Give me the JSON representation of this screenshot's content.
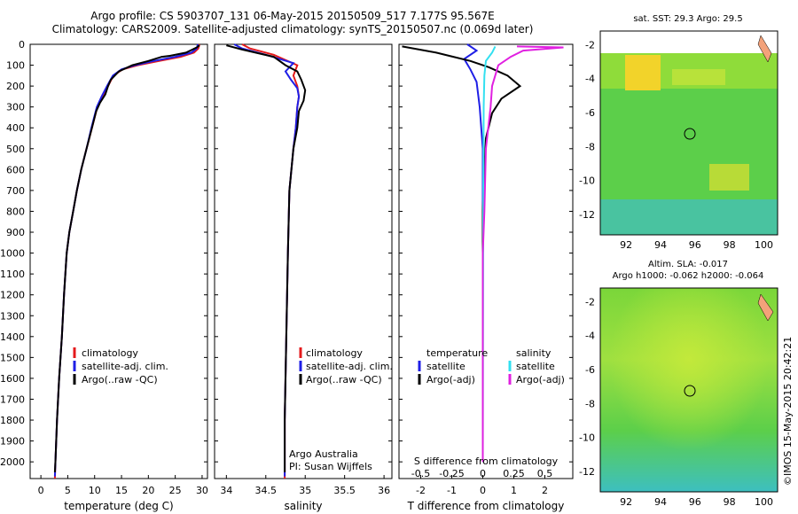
{
  "header": {
    "line1": "Argo profile: CS 5903707_131 06-May-2015 20150509_517 7.177S 95.567E",
    "line2": "Climatology: CARS2009. Satellite-adjusted climatology: synTS_20150507.nc (0.069d later)"
  },
  "depth_ticks": [
    "0",
    "100",
    "200",
    "300",
    "400",
    "500",
    "600",
    "700",
    "800",
    "900",
    "1000",
    "1100",
    "1200",
    "1300",
    "1400",
    "1500",
    "1600",
    "1700",
    "1800",
    "1900",
    "2000"
  ],
  "colors": {
    "climatology": "#e41a1c",
    "satellite": "#1f1fe6",
    "argo": "#000000",
    "salinity_sat": "#33e0f0",
    "salinity_argo": "#e020e0"
  },
  "panels": {
    "temperature": {
      "xlabel": "temperature (deg C)",
      "ticks": [
        "0",
        "5",
        "10",
        "15",
        "20",
        "25",
        "30"
      ],
      "legend": [
        "climatology",
        "satellite-adj. clim.",
        "Argo(..raw -QC)"
      ]
    },
    "salinity": {
      "xlabel": "salinity",
      "ticks": [
        "34",
        "34.5",
        "35",
        "35.5",
        "36"
      ],
      "legend": [
        "climatology",
        "satellite-adj. clim.",
        "Argo(..raw -QC)"
      ],
      "note1": "Argo Australia",
      "note2": "PI: Susan Wijffels"
    },
    "difference": {
      "xlabel": "T difference from climatology",
      "top_label": "S difference from climatology",
      "t_ticks": [
        "-2",
        "-1",
        "0",
        "1",
        "2"
      ],
      "s_ticks": [
        "-0.5",
        "-0.25",
        "0",
        "0.25",
        "0.5"
      ],
      "legend_temp_title": "temperature",
      "legend_sal_title": "salinity",
      "legend_temp": [
        "satellite",
        "Argo(-adj)"
      ],
      "legend_sal": [
        "satellite",
        "Argo(-adj)"
      ]
    }
  },
  "maps": {
    "sst": {
      "title": "sat. SST: 29.3 Argo: 29.5",
      "yticks": [
        "-2",
        "-4",
        "-6",
        "-8",
        "-10",
        "-12"
      ],
      "xticks": [
        "92",
        "94",
        "96",
        "98",
        "100"
      ]
    },
    "sla": {
      "title1": "Altim. SLA: -0.017",
      "title2": "Argo h1000: -0.062 h2000: -0.064",
      "yticks": [
        "-2",
        "-4",
        "-6",
        "-8",
        "-10",
        "-12"
      ],
      "xticks": [
        "92",
        "94",
        "96",
        "98",
        "100"
      ]
    }
  },
  "footer_vertical": "©IMOS 15-May-2015 20:42:21",
  "chart_data": [
    {
      "type": "line",
      "xlabel": "temperature (deg C)",
      "ylabel": "",
      "xlim": [
        -2,
        31
      ],
      "ylim": [
        2080,
        0
      ],
      "series": [
        {
          "name": "climatology",
          "points": [
            [
              29.5,
              0
            ],
            [
              29.3,
              20
            ],
            [
              28.5,
              40
            ],
            [
              26,
              60
            ],
            [
              22,
              80
            ],
            [
              18,
              100
            ],
            [
              15.2,
              120
            ],
            [
              13.5,
              150
            ],
            [
              12.5,
              200
            ],
            [
              11.5,
              250
            ],
            [
              10.5,
              300
            ],
            [
              9.5,
              400
            ],
            [
              8.5,
              500
            ],
            [
              7.5,
              600
            ],
            [
              6.7,
              700
            ],
            [
              6.0,
              800
            ],
            [
              5.3,
              900
            ],
            [
              4.8,
              1000
            ],
            [
              4.3,
              1200
            ],
            [
              3.9,
              1400
            ],
            [
              3.4,
              1600
            ],
            [
              3.0,
              1800
            ],
            [
              2.7,
              2000
            ],
            [
              2.6,
              2080
            ]
          ]
        },
        {
          "name": "satellite-adj. clim.",
          "points": [
            [
              29.2,
              0
            ],
            [
              29.0,
              20
            ],
            [
              28.0,
              40
            ],
            [
              25,
              60
            ],
            [
              21,
              80
            ],
            [
              17.5,
              100
            ],
            [
              15,
              120
            ],
            [
              13.4,
              150
            ],
            [
              12.3,
              200
            ],
            [
              11.3,
              250
            ],
            [
              10.4,
              300
            ],
            [
              9.4,
              400
            ],
            [
              8.5,
              500
            ],
            [
              7.5,
              600
            ],
            [
              6.7,
              700
            ],
            [
              6.0,
              800
            ],
            [
              5.3,
              900
            ],
            [
              4.8,
              1000
            ],
            [
              4.3,
              1200
            ],
            [
              3.9,
              1400
            ],
            [
              3.4,
              1600
            ],
            [
              3.0,
              1800
            ],
            [
              2.7,
              2000
            ],
            [
              2.6,
              2070
            ]
          ]
        },
        {
          "name": "Argo(..raw -QC)",
          "points": [
            [
              29.5,
              5
            ],
            [
              29,
              15
            ],
            [
              27,
              40
            ],
            [
              24,
              55
            ],
            [
              22.5,
              60
            ],
            [
              20,
              80
            ],
            [
              17,
              100
            ],
            [
              14.5,
              130
            ],
            [
              13,
              170
            ],
            [
              12.5,
              200
            ],
            [
              12,
              240
            ],
            [
              11,
              280
            ],
            [
              10.3,
              320
            ],
            [
              9.5,
              400
            ],
            [
              8.5,
              500
            ],
            [
              7.5,
              600
            ],
            [
              6.7,
              700
            ],
            [
              6.0,
              800
            ],
            [
              5.3,
              900
            ],
            [
              4.8,
              1000
            ],
            [
              4.3,
              1200
            ],
            [
              3.9,
              1400
            ],
            [
              3.4,
              1600
            ],
            [
              3.0,
              1800
            ],
            [
              2.7,
              2000
            ],
            [
              2.6,
              2050
            ]
          ]
        }
      ]
    },
    {
      "type": "line",
      "xlabel": "salinity",
      "ylabel": "",
      "xlim": [
        33.85,
        36.1
      ],
      "ylim": [
        2080,
        0
      ],
      "series": [
        {
          "name": "climatology",
          "points": [
            [
              34.2,
              0
            ],
            [
              34.3,
              20
            ],
            [
              34.6,
              50
            ],
            [
              34.9,
              100
            ],
            [
              34.85,
              150
            ],
            [
              34.9,
              200
            ],
            [
              34.92,
              250
            ],
            [
              34.9,
              300
            ],
            [
              34.88,
              400
            ],
            [
              34.85,
              500
            ],
            [
              34.8,
              700
            ],
            [
              34.78,
              1000
            ],
            [
              34.76,
              1400
            ],
            [
              34.74,
              1800
            ],
            [
              34.74,
              2000
            ],
            [
              34.74,
              2080
            ]
          ]
        },
        {
          "name": "satellite-adj. clim.",
          "points": [
            [
              34.1,
              0
            ],
            [
              34.2,
              20
            ],
            [
              34.5,
              50
            ],
            [
              34.85,
              90
            ],
            [
              34.75,
              130
            ],
            [
              34.82,
              170
            ],
            [
              34.9,
              210
            ],
            [
              34.92,
              250
            ],
            [
              34.9,
              300
            ],
            [
              34.88,
              400
            ],
            [
              34.85,
              500
            ],
            [
              34.8,
              700
            ],
            [
              34.78,
              1000
            ],
            [
              34.76,
              1400
            ],
            [
              34.74,
              1800
            ],
            [
              34.74,
              2000
            ],
            [
              34.74,
              2070
            ]
          ]
        },
        {
          "name": "Argo(..raw -QC)",
          "points": [
            [
              34.0,
              5
            ],
            [
              34.2,
              25
            ],
            [
              34.6,
              60
            ],
            [
              34.75,
              100
            ],
            [
              34.9,
              130
            ],
            [
              34.95,
              170
            ],
            [
              35.0,
              220
            ],
            [
              34.98,
              270
            ],
            [
              34.92,
              320
            ],
            [
              34.9,
              400
            ],
            [
              34.85,
              500
            ],
            [
              34.8,
              700
            ],
            [
              34.78,
              1000
            ],
            [
              34.76,
              1400
            ],
            [
              34.74,
              1800
            ],
            [
              34.74,
              2000
            ],
            [
              34.74,
              2050
            ]
          ]
        }
      ]
    },
    {
      "type": "line",
      "xlabel": "T difference from climatology",
      "ylabel": "",
      "xlim": [
        -2.7,
        2.9
      ],
      "ylim": [
        2080,
        0
      ],
      "series": [
        {
          "name": "temperature satellite",
          "points": [
            [
              -0.5,
              0
            ],
            [
              -0.2,
              30
            ],
            [
              -0.6,
              70
            ],
            [
              -0.4,
              120
            ],
            [
              -0.2,
              180
            ],
            [
              -0.1,
              300
            ],
            [
              0,
              500
            ],
            [
              0,
              1000
            ],
            [
              0,
              2000
            ]
          ]
        },
        {
          "name": "temperature Argo(-adj)",
          "points": [
            [
              -2.6,
              10
            ],
            [
              -1.5,
              40
            ],
            [
              -0.4,
              80
            ],
            [
              0.2,
              110
            ],
            [
              0.8,
              150
            ],
            [
              1.2,
              200
            ],
            [
              0.6,
              260
            ],
            [
              0.3,
              330
            ],
            [
              0.1,
              450
            ],
            [
              0.05,
              600
            ],
            [
              0,
              800
            ],
            [
              0,
              1000
            ],
            [
              0,
              1400
            ],
            [
              0,
              2000
            ]
          ]
        },
        {
          "name": "salinity satellite",
          "points": [
            [
              0.4,
              10
            ],
            [
              0.3,
              40
            ],
            [
              0.1,
              80
            ],
            [
              0.05,
              150
            ],
            [
              0.03,
              300
            ],
            [
              0.02,
              600
            ],
            [
              0.01,
              1000
            ],
            [
              0,
              2000
            ]
          ]
        },
        {
          "name": "salinity Argo(-adj)",
          "points": [
            [
              1.1,
              10
            ],
            [
              2.6,
              15
            ],
            [
              1.3,
              30
            ],
            [
              0.9,
              60
            ],
            [
              0.5,
              100
            ],
            [
              0.3,
              200
            ],
            [
              0.25,
              300
            ],
            [
              0.1,
              500
            ],
            [
              0.05,
              800
            ],
            [
              0,
              1000
            ],
            [
              0,
              2000
            ]
          ]
        }
      ]
    }
  ]
}
